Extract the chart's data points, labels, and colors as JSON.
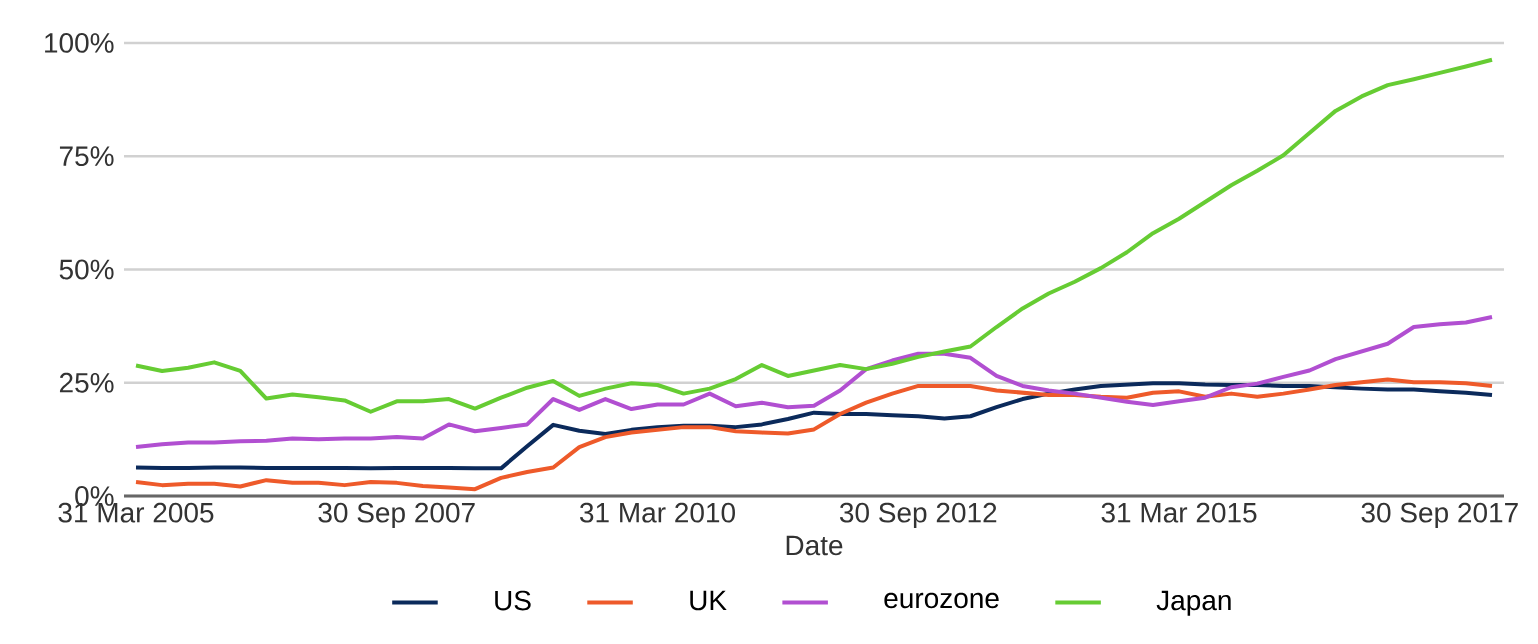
{
  "chart_data": {
    "type": "line",
    "xlabel": "Date",
    "categories": [
      "31 Mar 2005",
      null,
      null,
      null,
      null,
      null,
      null,
      null,
      null,
      null,
      "30 Sep 2007",
      null,
      null,
      null,
      null,
      null,
      null,
      null,
      null,
      null,
      "31 Mar 2010",
      null,
      null,
      null,
      null,
      null,
      null,
      null,
      null,
      null,
      "30 Sep 2012",
      null,
      null,
      null,
      null,
      null,
      null,
      null,
      null,
      null,
      "31 Mar 2015",
      null,
      null,
      null,
      null,
      null,
      null,
      null,
      null,
      null,
      "30 Sep 2017",
      null,
      null
    ],
    "series": [
      {
        "name": "US",
        "color": "#0b2a5b",
        "values": [
          6.3,
          6.2,
          6.2,
          6.3,
          6.3,
          6.2,
          6.2,
          6.2,
          6.2,
          6.1,
          6.2,
          6.2,
          6.2,
          6.1,
          6.1,
          11.0,
          15.7,
          14.4,
          13.7,
          14.6,
          15.2,
          15.5,
          15.5,
          15.2,
          15.8,
          17.0,
          18.4,
          18.1,
          18.1,
          17.8,
          17.6,
          17.1,
          17.6,
          19.6,
          21.4,
          22.6,
          23.5,
          24.3,
          24.6,
          24.9,
          24.9,
          24.6,
          24.5,
          24.5,
          24.3,
          24.3,
          24.0,
          23.7,
          23.5,
          23.5,
          23.1,
          22.8,
          22.3
        ]
      },
      {
        "name": "UK",
        "color": "#ee5a2a",
        "values": [
          3.1,
          2.4,
          2.7,
          2.7,
          2.1,
          3.5,
          2.9,
          2.9,
          2.4,
          3.1,
          2.9,
          2.2,
          1.9,
          1.5,
          4.0,
          5.3,
          6.3,
          10.8,
          13.0,
          14.0,
          14.6,
          15.2,
          15.2,
          14.3,
          14.0,
          13.8,
          14.7,
          18.1,
          20.6,
          22.6,
          24.3,
          24.3,
          24.3,
          23.3,
          22.8,
          22.3,
          22.3,
          21.9,
          21.7,
          22.8,
          23.1,
          21.9,
          22.6,
          21.9,
          22.6,
          23.5,
          24.5,
          25.1,
          25.7,
          25.1,
          25.1,
          24.9,
          24.3
        ]
      },
      {
        "name": "eurozone",
        "color": "#b14fd1",
        "values": [
          10.8,
          11.4,
          11.8,
          11.8,
          12.1,
          12.2,
          12.7,
          12.5,
          12.7,
          12.7,
          13.0,
          12.7,
          15.8,
          14.3,
          15.0,
          15.8,
          21.4,
          19.0,
          21.4,
          19.2,
          20.2,
          20.2,
          22.6,
          19.8,
          20.6,
          19.6,
          19.9,
          23.3,
          28.0,
          29.9,
          31.4,
          31.4,
          30.5,
          26.5,
          24.3,
          23.3,
          22.6,
          21.7,
          20.8,
          20.1,
          20.9,
          21.7,
          24.0,
          24.8,
          26.3,
          27.7,
          30.2,
          31.9,
          33.6,
          37.3,
          37.9,
          38.3,
          39.5
        ]
      },
      {
        "name": "Japan",
        "color": "#66cc33",
        "values": [
          28.8,
          27.6,
          28.3,
          29.5,
          27.6,
          21.5,
          22.4,
          21.8,
          21.1,
          18.6,
          20.9,
          20.9,
          21.4,
          19.3,
          21.7,
          23.9,
          25.4,
          22.1,
          23.7,
          24.9,
          24.5,
          22.6,
          23.7,
          25.8,
          28.9,
          26.5,
          27.7,
          28.9,
          28.0,
          29.2,
          30.7,
          31.9,
          33.0,
          37.3,
          41.4,
          44.7,
          47.3,
          50.3,
          53.8,
          58.0,
          61.2,
          64.9,
          68.6,
          71.8,
          75.2,
          80.1,
          85.0,
          88.2,
          90.7,
          92.0,
          93.4,
          94.8,
          96.3
        ]
      }
    ],
    "ylim": [
      0,
      100
    ],
    "yticks": [
      {
        "value": 0,
        "label": "0%"
      },
      {
        "value": 25,
        "label": "25%"
      },
      {
        "value": 50,
        "label": "50%"
      },
      {
        "value": 75,
        "label": "75%"
      },
      {
        "value": 100,
        "label": "100%"
      }
    ],
    "grid": "y",
    "legend": "bottom",
    "marker": "none",
    "line_style": "solid"
  }
}
